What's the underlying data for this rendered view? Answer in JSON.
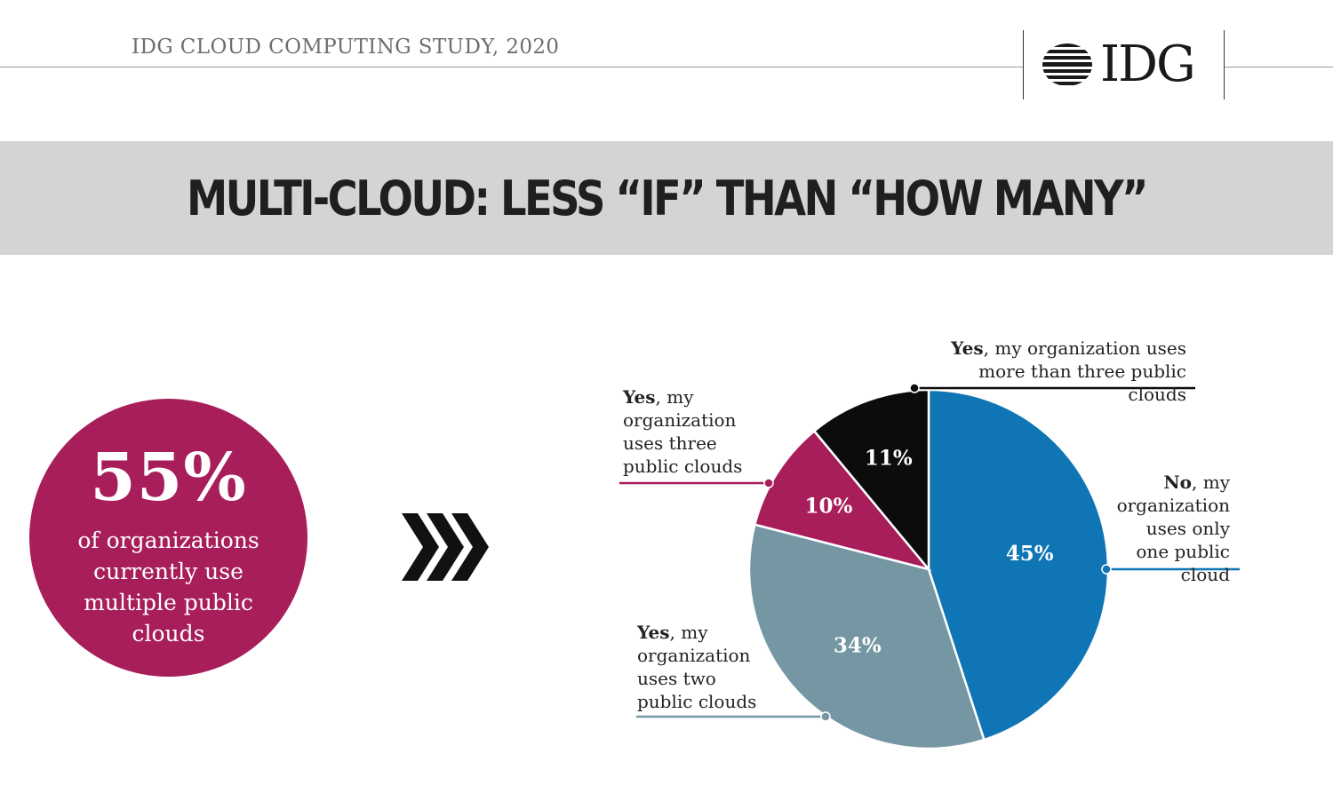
{
  "header": {
    "study_title": "IDG CLOUD COMPUTING STUDY, 2020",
    "logo_text": "IDG",
    "logo_icon": "striped-globe-icon"
  },
  "title": "MULTI-CLOUD: LESS “IF” THAN “HOW MANY”",
  "callout": {
    "value": "55%",
    "caption": "of organizations currently use multiple public clouds",
    "color": "#a81e5b",
    "arrow_icon": "triple-chevron-right-icon"
  },
  "chart_data": {
    "type": "pie",
    "start_angle_deg": 0,
    "direction": "clockwise",
    "slices": [
      {
        "value": 45,
        "value_label": "45%",
        "label_bold": "No",
        "label_rest": ", my organization uses only one public cloud",
        "color": "#0f75b4"
      },
      {
        "value": 34,
        "value_label": "34%",
        "label_bold": "Yes",
        "label_rest": ", my organization uses two public clouds",
        "color": "#7497a3"
      },
      {
        "value": 10,
        "value_label": "10%",
        "label_bold": "Yes",
        "label_rest": ", my organization uses three public clouds",
        "color": "#a81e5b"
      },
      {
        "value": 11,
        "value_label": "11%",
        "label_bold": "Yes",
        "label_rest": ", my organization uses more than three public clouds",
        "color": "#0c0c0c"
      }
    ]
  }
}
